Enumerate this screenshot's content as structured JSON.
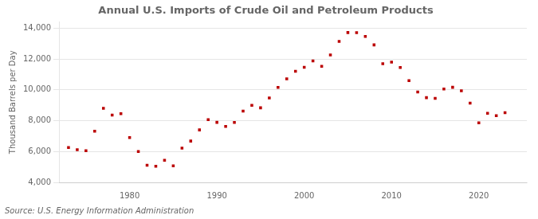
{
  "chart_data": {
    "type": "scatter",
    "title": "Annual U.S. Imports of Crude Oil and Petroleum Products",
    "ylabel": "Thousand Barrels per Day",
    "annotation": "Source: U.S. Energy Information Administration",
    "x": [
      1973,
      1974,
      1975,
      1976,
      1977,
      1978,
      1979,
      1980,
      1981,
      1982,
      1983,
      1984,
      1985,
      1986,
      1987,
      1988,
      1989,
      1990,
      1991,
      1992,
      1993,
      1994,
      1995,
      1996,
      1997,
      1998,
      1999,
      2000,
      2001,
      2002,
      2003,
      2004,
      2005,
      2006,
      2007,
      2008,
      2009,
      2010,
      2011,
      2012,
      2013,
      2014,
      2015,
      2016,
      2017,
      2018,
      2019,
      2020,
      2021,
      2022,
      2023
    ],
    "values": [
      6256,
      6112,
      6056,
      7313,
      8807,
      8363,
      8456,
      6909,
      5996,
      5113,
      5051,
      5437,
      5067,
      6224,
      6678,
      7402,
      8061,
      7893,
      7627,
      7888,
      8620,
      8996,
      8835,
      9478,
      10162,
      10708,
      11199,
      11459,
      11871,
      11530,
      12264,
      13145,
      13714,
      13707,
      13468,
      12915,
      11691,
      11793,
      11447,
      10596,
      9859,
      9493,
      9449,
      10052,
      10165,
      9940,
      9141,
      7864,
      8476,
      8327,
      8514
    ],
    "color": "#bb0000",
    "marker": "square",
    "xlim": [
      1972,
      2025.5
    ],
    "xticks": [
      1980,
      1990,
      2000,
      2010,
      2020
    ],
    "ylim": [
      4000,
      14400
    ],
    "yticks": [
      {
        "value": 4000,
        "label": "4,000"
      },
      {
        "value": 6000,
        "label": "6,000"
      },
      {
        "value": 8000,
        "label": "8,000"
      },
      {
        "value": 10000,
        "label": "10,000"
      },
      {
        "value": 12000,
        "label": "12,000"
      },
      {
        "value": 14000,
        "label": "14,000"
      }
    ],
    "grid": "y"
  }
}
